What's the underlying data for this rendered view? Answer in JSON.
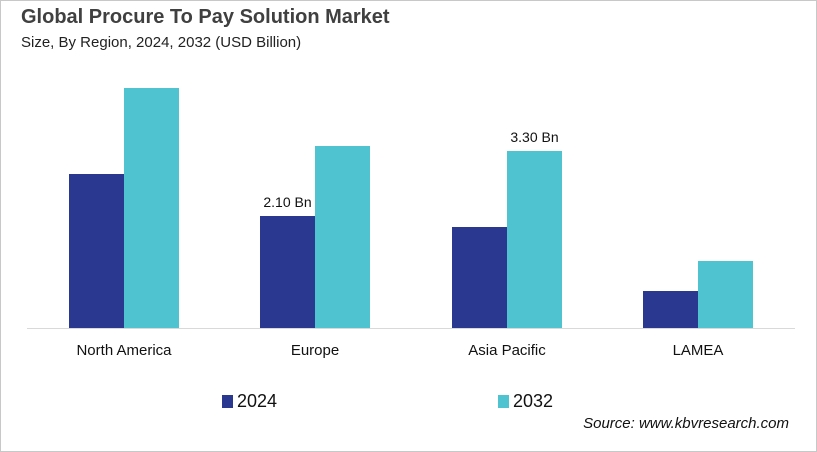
{
  "title": "Global Procure To Pay Solution Market",
  "subtitle": "Size, By Region, 2024, 2032 (USD Billion)",
  "source": "Source: www.kbvresearch.com",
  "colors": {
    "2024": "#2b388f",
    "2032": "#4fc3cf"
  },
  "chart_data": {
    "type": "bar",
    "title": "Global Procure To Pay Solution Market",
    "subtitle": "Size, By Region, 2024, 2032 (USD Billion)",
    "xlabel": "",
    "ylabel": "USD Billion",
    "categories": [
      "North America",
      "Europe",
      "Asia Pacific",
      "LAMEA"
    ],
    "series": [
      {
        "name": "2024",
        "values": [
          2.88,
          2.1,
          1.89,
          0.69
        ]
      },
      {
        "name": "2032",
        "values": [
          4.49,
          3.4,
          3.3,
          1.25
        ]
      }
    ],
    "annotations": [
      {
        "category": "Europe",
        "series": "2024",
        "text": "2.10 Bn"
      },
      {
        "category": "Asia Pacific",
        "series": "2032",
        "text": "3.30 Bn"
      }
    ],
    "ylim": [
      0,
      5
    ],
    "grid": false,
    "legend_position": "bottom"
  },
  "legend": [
    {
      "label": "2024"
    },
    {
      "label": "2032"
    }
  ]
}
